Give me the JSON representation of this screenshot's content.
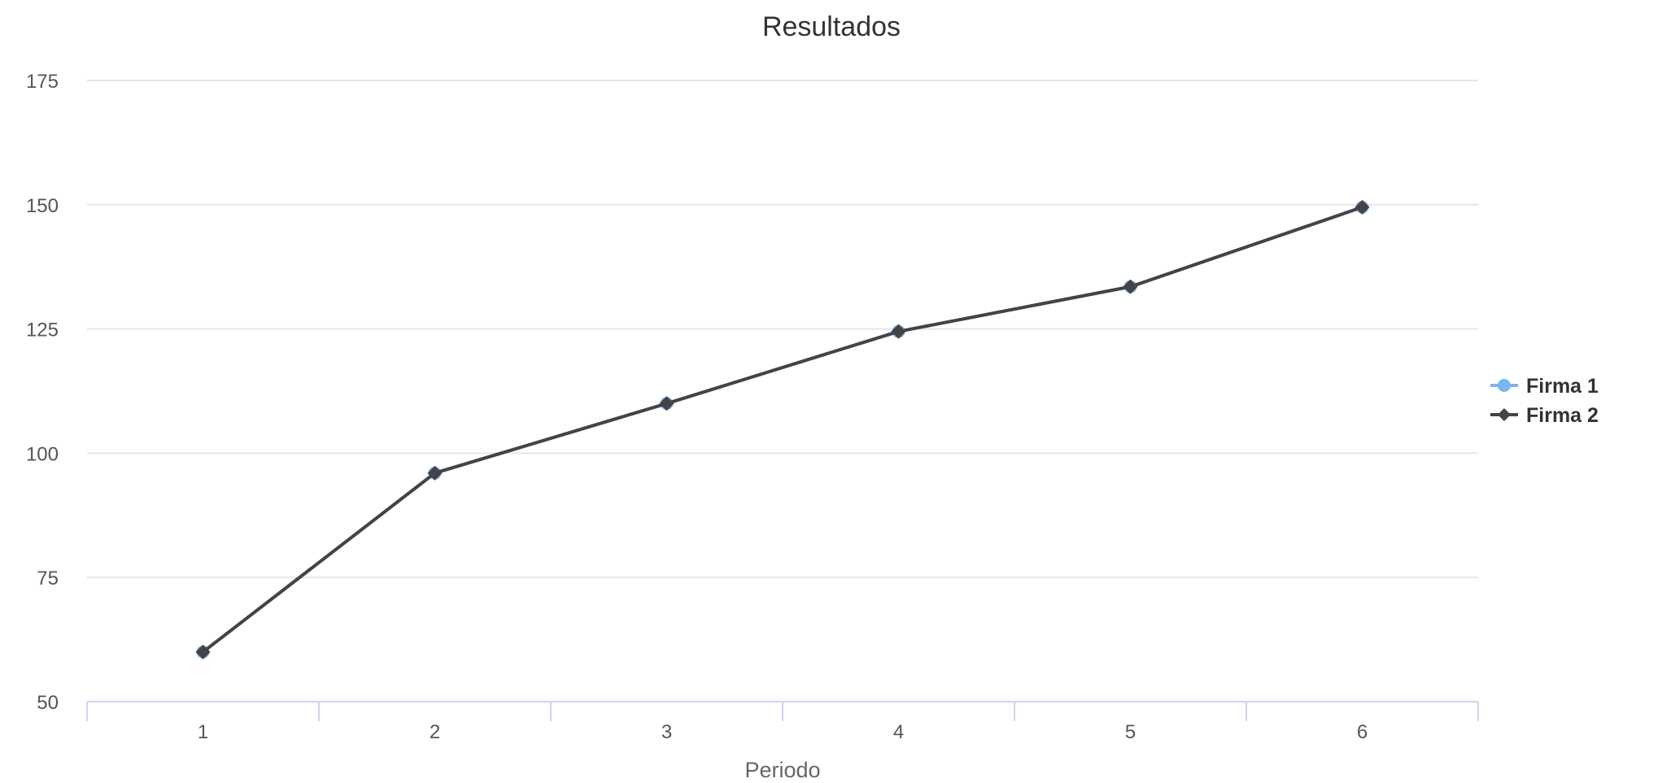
{
  "chart_data": {
    "type": "line",
    "title": "Resultados",
    "xlabel": "Periodo",
    "ylabel": "",
    "categories": [
      "1",
      "2",
      "3",
      "4",
      "5",
      "6"
    ],
    "ylim": [
      50,
      175
    ],
    "yticks": [
      "50",
      "75",
      "100",
      "125",
      "150",
      "175"
    ],
    "grid": true,
    "legend": "right",
    "series": [
      {
        "name": "Firma 1",
        "color": "#7cb5ec",
        "marker": "circle",
        "values": [
          60,
          96,
          110,
          124.5,
          133.5,
          149.5
        ]
      },
      {
        "name": "Firma 2",
        "color": "#434348",
        "marker": "diamond",
        "values": [
          60,
          96,
          110,
          124.5,
          133.5,
          149.5
        ]
      }
    ]
  }
}
